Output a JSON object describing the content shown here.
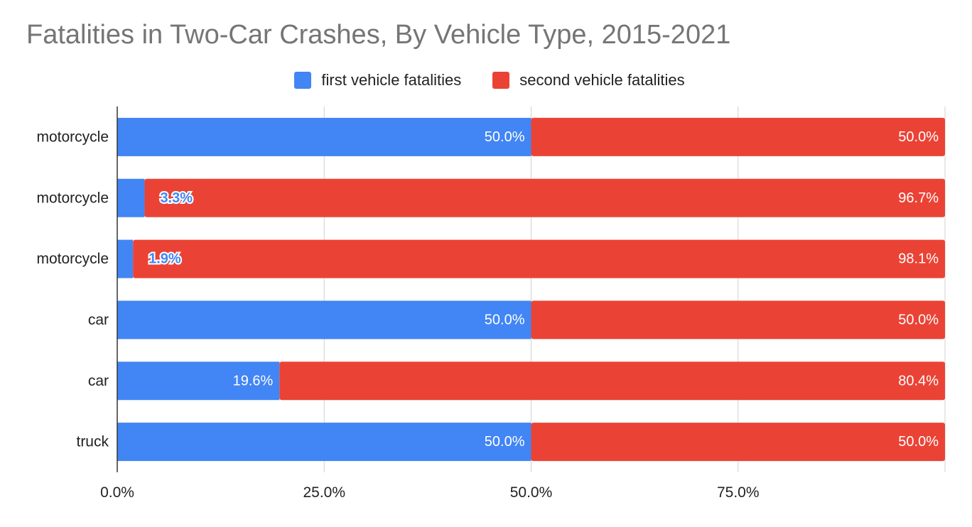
{
  "chart_data": {
    "type": "bar",
    "orientation": "horizontal",
    "stacked": "percent",
    "title": "Fatalities in Two-Car Crashes, By Vehicle Type, 2015-2021",
    "categories": [
      "motorcycle",
      "motorcycle",
      "motorcycle",
      "car",
      "car",
      "truck"
    ],
    "series": [
      {
        "name": "first vehicle fatalities",
        "color": "#4285F4",
        "values": [
          50.0,
          3.3,
          1.9,
          50.0,
          19.6,
          50.0
        ]
      },
      {
        "name": "second vehicle fatalities",
        "color": "#EA4335",
        "values": [
          50.0,
          96.7,
          98.1,
          50.0,
          80.4,
          50.0
        ]
      }
    ],
    "data_labels": [
      [
        "50.0%",
        "3.3%",
        "1.9%",
        "50.0%",
        "19.6%",
        "50.0%"
      ],
      [
        "50.0%",
        "96.7%",
        "98.1%",
        "50.0%",
        "80.4%",
        "50.0%"
      ]
    ],
    "x_ticks": [
      "0.0%",
      "25.0%",
      "50.0%",
      "75.0%"
    ],
    "xlim": [
      0,
      100
    ],
    "grid": true,
    "legend": "top-center"
  }
}
